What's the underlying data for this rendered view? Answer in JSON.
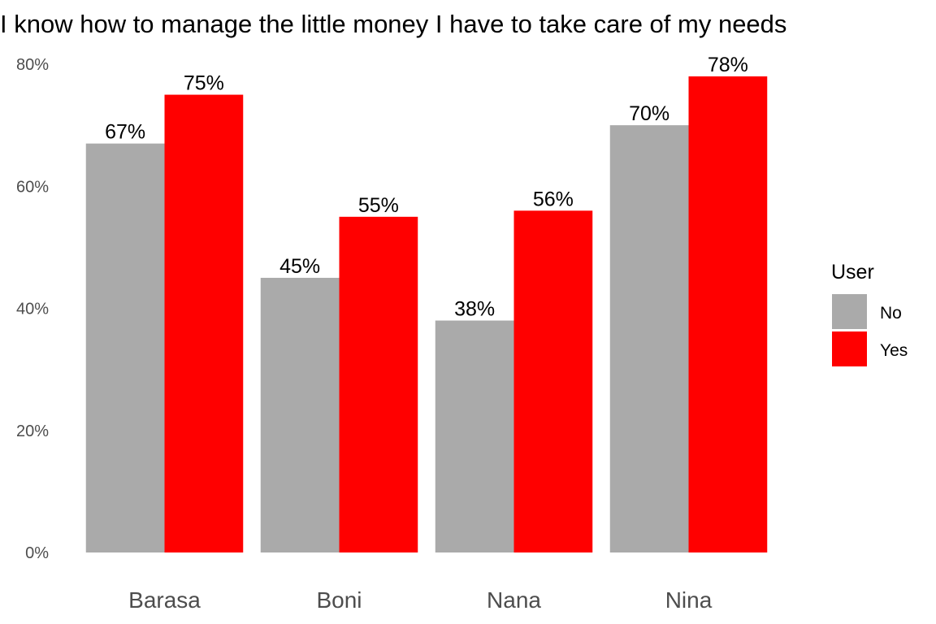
{
  "chart_data": {
    "type": "bar",
    "title": "I know how to manage the little money I have to take care of my needs",
    "xlabel": "",
    "ylabel": "",
    "categories": [
      "Barasa",
      "Boni",
      "Nana",
      "Nina"
    ],
    "series": [
      {
        "name": "No",
        "color": "#aaaaaa",
        "values": [
          67,
          45,
          38,
          70
        ],
        "labels": [
          "67%",
          "45%",
          "38%",
          "70%"
        ]
      },
      {
        "name": "Yes",
        "color": "#ff0000",
        "values": [
          75,
          55,
          56,
          78
        ],
        "labels": [
          "75%",
          "55%",
          "56%",
          "78%"
        ]
      }
    ],
    "ylim": [
      0,
      80
    ],
    "yticks": [
      {
        "value": 0,
        "label": "0%"
      },
      {
        "value": 20,
        "label": "20%"
      },
      {
        "value": 40,
        "label": "40%"
      },
      {
        "value": 60,
        "label": "60%"
      },
      {
        "value": 80,
        "label": "80%"
      }
    ],
    "grid": false,
    "legend": {
      "title": "User",
      "position": "right"
    }
  }
}
